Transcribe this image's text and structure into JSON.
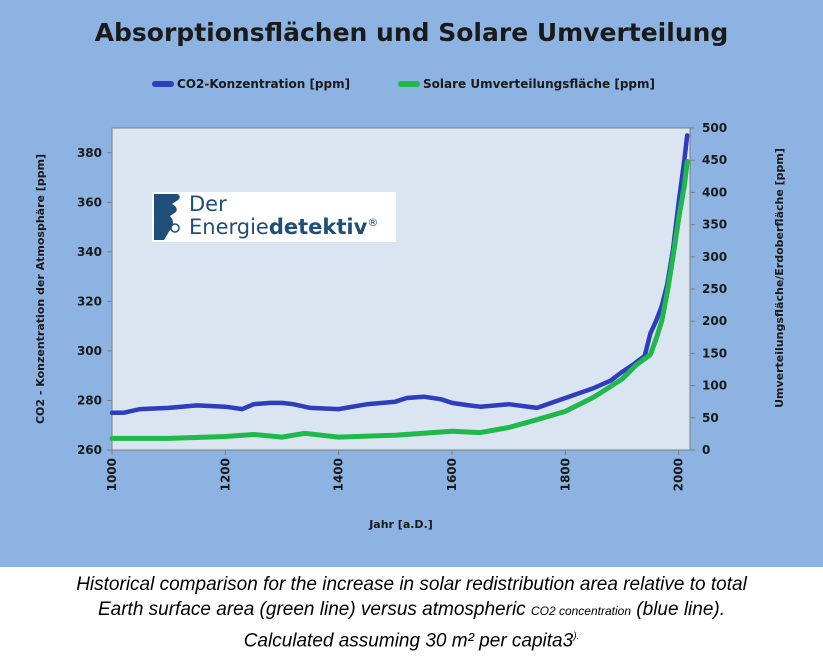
{
  "chart_data": {
    "type": "line",
    "title": "Absorptionsflächen und Solare Umverteilung",
    "xlabel": "Jahr [a.D.]",
    "ylabel_left": "CO2 - Konzentration der Atmosphäre [ppm]",
    "ylabel_right": "Umverteilungsfläche/Erdoberfläche [ppm]",
    "xlim": [
      1000,
      2020
    ],
    "ylim_left": [
      260,
      390
    ],
    "ylim_right": [
      0,
      500
    ],
    "xticks": [
      "1000",
      "1200",
      "1400",
      "1600",
      "1800",
      "2000"
    ],
    "yticks_left": [
      "260",
      "280",
      "300",
      "320",
      "340",
      "360",
      "380"
    ],
    "yticks_right": [
      "0",
      "50",
      "100",
      "150",
      "200",
      "250",
      "300",
      "350",
      "400",
      "450",
      "500"
    ],
    "grid": false,
    "legend_position": "top",
    "series": [
      {
        "name": "CO2-Konzentration [ppm]",
        "axis": "left",
        "color": "#2e3dbd",
        "x": [
          1000,
          1020,
          1050,
          1100,
          1150,
          1200,
          1230,
          1250,
          1280,
          1300,
          1320,
          1350,
          1400,
          1450,
          1500,
          1520,
          1550,
          1580,
          1600,
          1630,
          1650,
          1700,
          1750,
          1800,
          1850,
          1880,
          1900,
          1920,
          1940,
          1950,
          1960,
          1970,
          1980,
          1990,
          2000,
          2010,
          2015
        ],
        "y": [
          275,
          275,
          276.5,
          277,
          278,
          277.5,
          276.5,
          278.5,
          279,
          279,
          278.5,
          277,
          276.5,
          278.5,
          279.5,
          281,
          281.5,
          280.5,
          279,
          278,
          277.5,
          278.5,
          277,
          281,
          285,
          288,
          291.5,
          294.5,
          298,
          307,
          312,
          318,
          327,
          341,
          360,
          377,
          387
        ]
      },
      {
        "name": "Solare Umverteilungsfläche [ppm]",
        "axis": "right",
        "color": "#1fb84a",
        "x": [
          1000,
          1100,
          1200,
          1250,
          1300,
          1340,
          1400,
          1500,
          1600,
          1650,
          1700,
          1750,
          1800,
          1850,
          1900,
          1925,
          1950,
          1960,
          1970,
          1980,
          1990,
          2000,
          2010,
          2015
        ],
        "y": [
          18,
          18,
          21,
          24,
          20,
          26,
          20,
          23,
          29,
          27,
          35,
          47,
          60,
          82,
          110,
          132,
          148,
          172,
          200,
          245,
          300,
          360,
          410,
          448
        ]
      }
    ]
  },
  "logo": {
    "line1": "Der",
    "line2_a": "Energie",
    "line2_b": "detektiv",
    "mark": "®"
  },
  "caption": {
    "line1": "Historical comparison for the increase in solar redistribution area relative to total",
    "line2_a": "Earth surface area (green line) versus atmospheric ",
    "line2_small": "CO2 concentration",
    "line2_b": " (blue line).",
    "line3_a": "Calculated assuming 30 m² per capita3",
    "line3_sup": ")."
  }
}
